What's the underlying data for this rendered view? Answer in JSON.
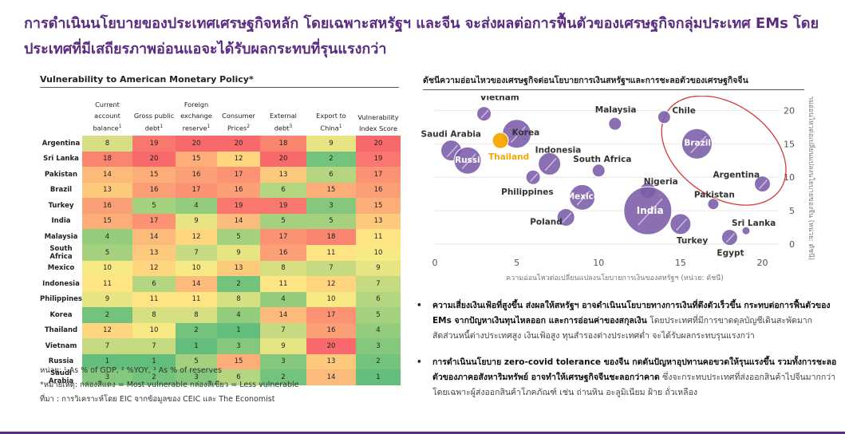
{
  "headline": "การดำเนินนโยบายของประเทศเศรษฐกิจหลัก โดยเฉพาะสหรัฐฯ และจีน จะส่งผลต่อการฟื้นตัวของเศรษฐกิจกลุ่มประเทศ EMs โดยประเทศที่มีเสถียรภาพอ่อนแอจะได้รับผลกระทบที่รุนแรงกว่า",
  "chart_data": [
    {
      "type": "heatmap",
      "title": "Vulnerability to American Monetary Policy*",
      "columns": [
        {
          "label": "Current account balance",
          "sup": "1"
        },
        {
          "label": "Gross public debt",
          "sup": "1"
        },
        {
          "label": "Foreign exchange reserve",
          "sup": "1"
        },
        {
          "label": "Consumer Prices",
          "sup": "2"
        },
        {
          "label": "External debt",
          "sup": "3"
        },
        {
          "label": "Export to China",
          "sup": "1"
        },
        {
          "label": "Vulnerability Index Score",
          "sup": ""
        }
      ],
      "rows": [
        "Argentina",
        "Sri Lanka",
        "Pakistan",
        "Brazil",
        "Turkey",
        "India",
        "Malaysia",
        "South Africa",
        "Mexico",
        "Indonesia",
        "Philippines",
        "Korea",
        "Thailand",
        "Vietnam",
        "Russia",
        "Saudi Arabia"
      ],
      "values": [
        [
          8,
          19,
          20,
          20,
          18,
          9,
          20
        ],
        [
          18,
          20,
          15,
          12,
          20,
          2,
          19
        ],
        [
          14,
          15,
          16,
          17,
          13,
          6,
          17
        ],
        [
          13,
          16,
          17,
          16,
          6,
          15,
          16
        ],
        [
          16,
          5,
          4,
          19,
          19,
          3,
          15
        ],
        [
          15,
          17,
          9,
          14,
          5,
          5,
          13
        ],
        [
          4,
          14,
          12,
          5,
          17,
          18,
          11
        ],
        [
          5,
          13,
          7,
          9,
          16,
          11,
          10
        ],
        [
          10,
          12,
          10,
          13,
          8,
          7,
          9
        ],
        [
          11,
          6,
          14,
          2,
          11,
          12,
          7
        ],
        [
          9,
          11,
          11,
          8,
          4,
          10,
          6
        ],
        [
          2,
          8,
          8,
          4,
          14,
          17,
          5
        ],
        [
          12,
          10,
          2,
          1,
          7,
          16,
          4
        ],
        [
          7,
          7,
          1,
          3,
          9,
          20,
          3
        ],
        [
          1,
          1,
          5,
          15,
          3,
          13,
          2
        ],
        [
          3,
          2,
          3,
          6,
          2,
          14,
          1
        ]
      ],
      "color_scale": {
        "low": "#63be7b",
        "mid": "#ffeb84",
        "high": "#f8696b"
      }
    },
    {
      "type": "scatter",
      "title": "ดัชนีความอ่อนไหวของเศรษฐกิจต่อนโยบายการเงินสหรัฐฯและการชะลอตัวของเศรษฐกิจจีน",
      "xlabel": "ความอ่อนไหวต่อเปลี่ยนแปลงนโยบายการเงินของสหรัฐฯ (หน่วย: ดัชนี)",
      "ylabel": "ความอ่อนไหวต่อเปลี่ยนแปลงนโยบายของจีน (หน่วย: ดัชนี)",
      "xlim": [
        0,
        21
      ],
      "ylim": [
        0,
        21
      ],
      "xticks": [
        0,
        5,
        10,
        15,
        20
      ],
      "yticks": [
        0,
        5,
        10,
        15,
        20
      ],
      "bubble_color": "#7a5ca8",
      "highlight_color": "#f6a800",
      "ellipse_color": "#d43a3a",
      "points": [
        {
          "name": "Vietnam",
          "x": 3,
          "y": 19.5,
          "r": 9,
          "lx": -5,
          "ly": -21
        },
        {
          "name": "Korea",
          "x": 5,
          "y": 16.5,
          "r": 18,
          "lx": -6,
          "ly": -2
        },
        {
          "name": "Saudi Arabia",
          "x": 1,
          "y": 14,
          "r": 13,
          "lx": -38,
          "ly": -21
        },
        {
          "name": "Russia",
          "x": 2,
          "y": 12.5,
          "r": 17,
          "lx": -16,
          "ly": -1,
          "label_color": "#ffffff"
        },
        {
          "name": "Thailand",
          "x": 4,
          "y": 15.5,
          "r": 10,
          "highlight": true,
          "lx": -15,
          "ly": 20,
          "label_color": "#f6a800"
        },
        {
          "name": "Indonesia",
          "x": 7,
          "y": 12,
          "r": 14,
          "lx": -18,
          "ly": -18
        },
        {
          "name": "Philippines",
          "x": 6,
          "y": 10,
          "r": 9,
          "lx": -40,
          "ly": 18
        },
        {
          "name": "South Africa",
          "x": 10,
          "y": 11,
          "r": 8,
          "lx": -32,
          "ly": -15
        },
        {
          "name": "Malaysia",
          "x": 11,
          "y": 18,
          "r": 8,
          "lx": -25,
          "ly": -18
        },
        {
          "name": "Mexico",
          "x": 9,
          "y": 7,
          "r": 16,
          "lx": -20,
          "ly": -2,
          "label_color": "#ffffff"
        },
        {
          "name": "Nigeria",
          "x": 13,
          "y": 8,
          "r": 10,
          "lx": -5,
          "ly": -12
        },
        {
          "name": "India",
          "x": 13,
          "y": 5,
          "r": 30,
          "lx": -14,
          "ly": 0,
          "label_color": "#ffffff"
        },
        {
          "name": "Poland",
          "x": 8,
          "y": 4,
          "r": 11,
          "lx": -45,
          "ly": 5
        },
        {
          "name": "Chile",
          "x": 14,
          "y": 19,
          "r": 8,
          "lx": 10,
          "ly": -9
        },
        {
          "name": "Brazil",
          "x": 16,
          "y": 15,
          "r": 19,
          "lx": -16,
          "ly": -2,
          "label_color": "#ffffff"
        },
        {
          "name": "Argentina",
          "x": 20,
          "y": 9,
          "r": 10,
          "lx": -62,
          "ly": -12
        },
        {
          "name": "Pakistan",
          "x": 17,
          "y": 6,
          "r": 7,
          "lx": -24,
          "ly": -12
        },
        {
          "name": "Turkey",
          "x": 15,
          "y": 3,
          "r": 13,
          "lx": -5,
          "ly": 20
        },
        {
          "name": "Egypt",
          "x": 18,
          "y": 1,
          "r": 10,
          "lx": -16,
          "ly": 19
        },
        {
          "name": "Sri Lanka",
          "x": 19,
          "y": 2,
          "r": 5,
          "lx": -18,
          "ly": -10
        }
      ]
    }
  ],
  "notes": {
    "unit_line": "หน่วย: ¹ As % of GDP, ² %YOY, ³ As % of reserves",
    "legend_note": "*หมายเหตุ: กล่องสีแดง = Most vulnerable กล่องสีเขียว = Less vulnerable",
    "source": "ที่มา : การวิเคราะห์โดย EIC จากข้อมูลของ CEIC และ The Economist"
  },
  "bullets": [
    {
      "bold": "ความเสี่ยงเงินเฟ้อที่สูงขึ้น ส่งผลให้สหรัฐฯ อาจดำเนินนโยบายทางการเงินที่ตึงตัวเร็วขึ้น กระทบต่อการฟื้นตัวของ EMs จากปัญหาเงินทุนไหลออก และการอ่อนค่าของสกุลเงิน",
      "rest": " โดยประเทศที่มีการขาดดุลบัญชีเดินสะพัดมาก สัดส่วนหนี้ต่างประเทศสูง เงินเฟ้อสูง ทุนสำรองต่างประเทศต่ำ จะได้รับผลกระทบรุนแรงกว่า"
    },
    {
      "bold": "การดำเนินนโยบาย zero-covid tolerance ของจีน กดดันปัญหาอุปทานคอขวดให้รุนแรงขึ้น รวมทั้งการชะลอตัวของภาคอสังหาริมทรัพย์ อาจทำให้เศรษฐกิจจีนชะลอกว่าคาด",
      "rest": " ซึ่งจะกระทบประเทศที่ส่งออกสินค้าไปจีนมากกว่า โดยเฉพาะผู้ส่งออกสินค้าโภคภัณฑ์ เช่น ถ่านหิน อะลูมิเนียม ฝ้าย ถั่วเหลือง"
    }
  ]
}
